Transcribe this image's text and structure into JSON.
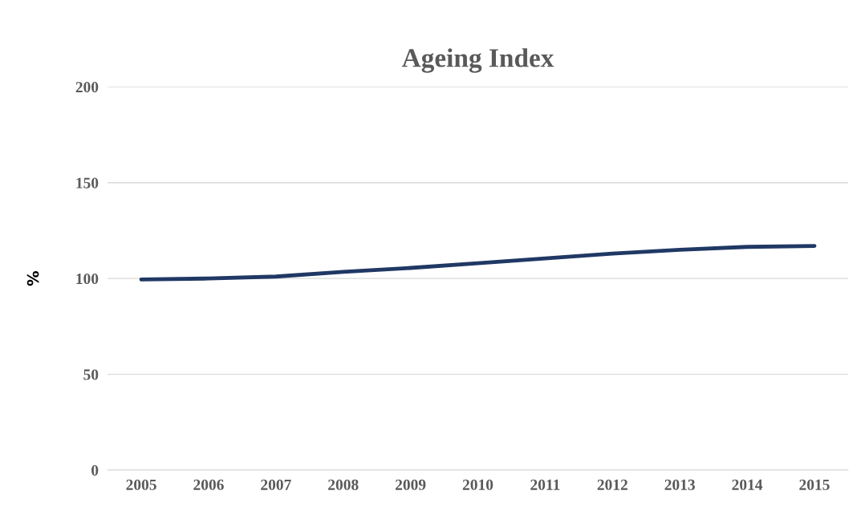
{
  "chart_data": {
    "type": "line",
    "title": "Ageing Index",
    "ylabel": "%",
    "categories": [
      "2005",
      "2006",
      "2007",
      "2008",
      "2009",
      "2010",
      "2011",
      "2012",
      "2013",
      "2014",
      "2015"
    ],
    "series": [
      {
        "color": "#203864",
        "values": [
          99.5,
          100,
          101,
          103.5,
          105.5,
          108,
          110.5,
          113,
          115,
          116.5,
          117
        ]
      }
    ],
    "ylim": [
      0,
      200
    ],
    "yticks": [
      0,
      50,
      100,
      150,
      200
    ],
    "grid": "y",
    "marker": "none",
    "line_style": "solid"
  }
}
